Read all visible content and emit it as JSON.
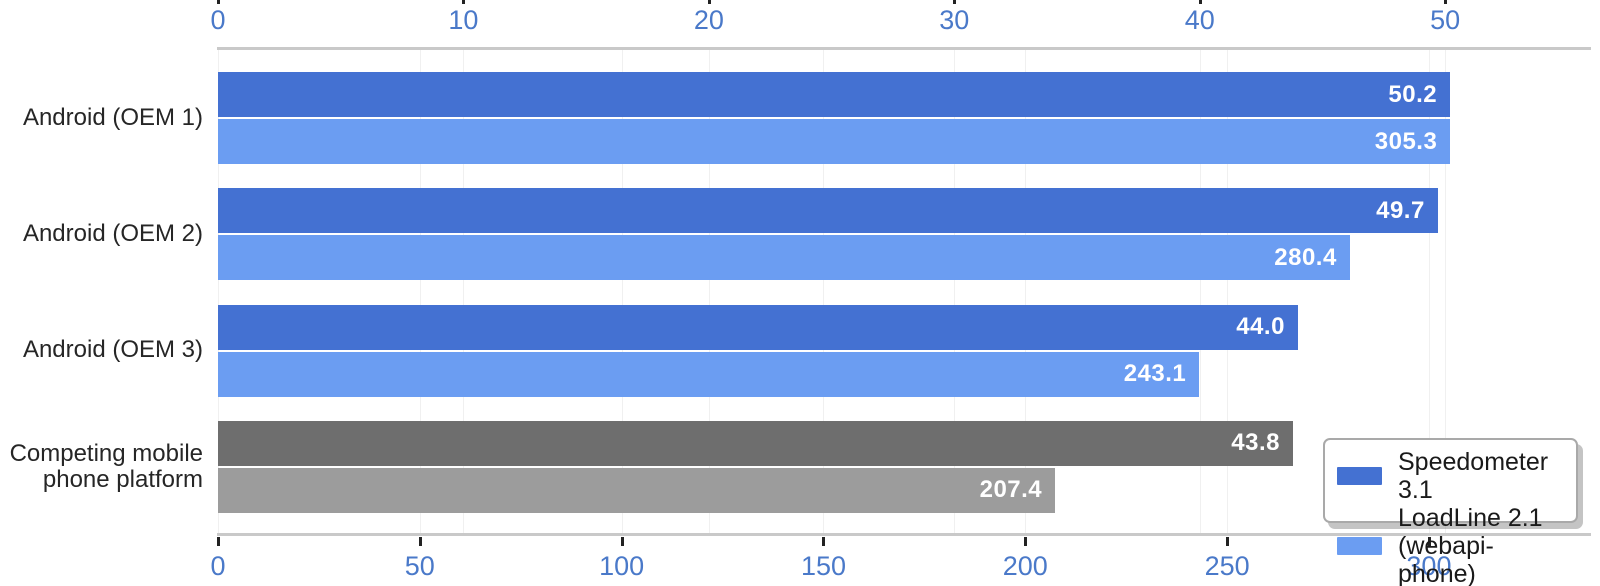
{
  "chart_data": {
    "type": "bar",
    "orientation": "horizontal",
    "title": "",
    "categories": [
      "Android (OEM 1)",
      "Android (OEM 2)",
      "Android (OEM 3)",
      "Competing mobile phone platform"
    ],
    "series": [
      {
        "name": "Speedometer 3.1",
        "axis": "top",
        "values": [
          50.2,
          49.7,
          44.0,
          43.8
        ],
        "value_labels": [
          "50.2",
          "49.7",
          "44.0",
          "43.8"
        ],
        "bar_colors": [
          "#4471d2",
          "#4471d2",
          "#4471d2",
          "#6e6e6e"
        ]
      },
      {
        "name": "LoadLine 2.1 (webapi-phone)",
        "axis": "bottom",
        "values": [
          305.3,
          280.4,
          243.1,
          207.4
        ],
        "value_labels": [
          "305.3",
          "280.4",
          "243.1",
          "207.4"
        ],
        "bar_colors": [
          "#6b9df2",
          "#6b9df2",
          "#6b9df2",
          "#9c9c9c"
        ]
      }
    ],
    "top_axis": {
      "ticks": [
        0,
        10,
        20,
        30,
        40,
        50
      ],
      "range": [
        0,
        55.9
      ]
    },
    "bottom_axis": {
      "ticks": [
        0,
        50,
        100,
        150,
        200,
        250,
        300
      ],
      "range": [
        0,
        339.9
      ]
    },
    "grid": true,
    "legend": {
      "position": "lower right",
      "items": [
        {
          "label": "Speedometer 3.1",
          "color": "#4471d2"
        },
        {
          "label": "LoadLine 2.1\n(webapi-phone)",
          "color": "#6b9df2"
        }
      ]
    },
    "style_colors": {
      "axis_tick_label": "#4a79c9",
      "tick_mark": "#222222",
      "axis_line": "#c9c9c9",
      "grid_line": "#f0f0f0",
      "value_label_text": "#ffffff",
      "category_text": "#262626"
    }
  }
}
